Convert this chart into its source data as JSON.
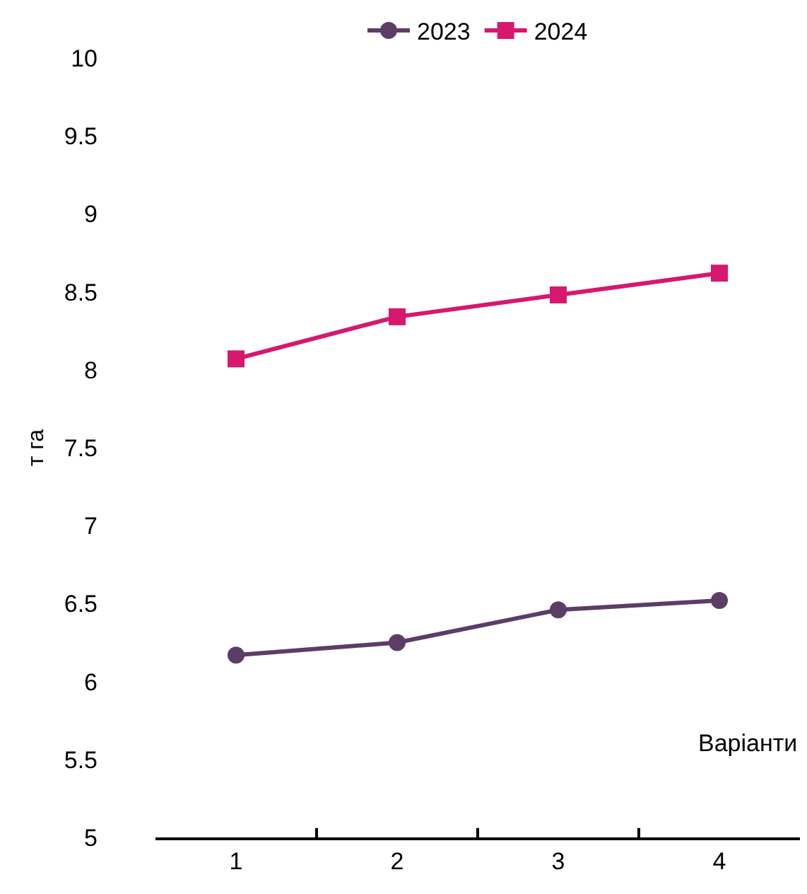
{
  "chart_data": {
    "type": "line",
    "xlabel": "Варіанти",
    "ylabel": "т га",
    "categories": [
      "1",
      "2",
      "3",
      "4"
    ],
    "series": [
      {
        "name": "2023",
        "color": "#5c3d66",
        "marker": "circle",
        "values": [
          6.17,
          6.25,
          6.46,
          6.52
        ]
      },
      {
        "name": "2024",
        "color": "#d6186e",
        "marker": "square",
        "values": [
          8.07,
          8.34,
          8.48,
          8.62
        ]
      }
    ],
    "ylim": [
      5,
      10
    ],
    "yticks": [
      5,
      5.5,
      6,
      6.5,
      7,
      7.5,
      8,
      8.5,
      9,
      9.5,
      10
    ],
    "grid": false,
    "legend": "top",
    "line_style": "solid"
  }
}
